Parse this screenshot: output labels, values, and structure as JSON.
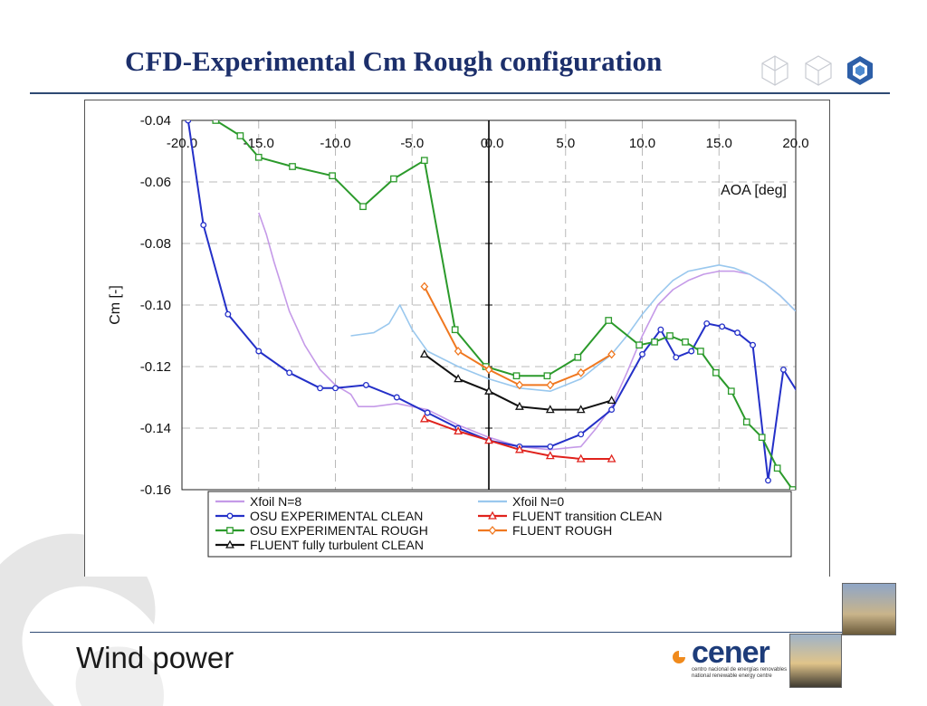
{
  "slide": {
    "title": "CFD-Experimental Cm Rough configuration",
    "footer_title": "Wind power",
    "logo_word": "cener",
    "logo_sub_1": "centro nacional de energías renovables",
    "logo_sub_2": "national renewable energy centre",
    "colors": {
      "title": "#1c2f6b",
      "rule": "#2e4a73"
    }
  },
  "chart_data": {
    "type": "line",
    "xlabel": "AOA [deg]",
    "ylabel": "Cm [-]",
    "xlim": [
      -20,
      20
    ],
    "ylim": [
      -0.16,
      -0.04
    ],
    "xticks": [
      "-20.0",
      "-15.0",
      "-10.0",
      "-5.0",
      "0",
      "0.0",
      "5.0",
      "10.0",
      "15.0",
      "20.0"
    ],
    "yticks": [
      "-0.04",
      "-0.06",
      "-0.08",
      "-0.10",
      "-0.12",
      "-0.14",
      "-0.16"
    ],
    "grid": true,
    "legend_position": "bottom",
    "series": [
      {
        "name": "Xfoil N=8",
        "color": "#c59ae8",
        "marker": "none",
        "points": [
          [
            -15,
            -0.07
          ],
          [
            -14.5,
            -0.077
          ],
          [
            -14,
            -0.086
          ],
          [
            -13.5,
            -0.094
          ],
          [
            -13,
            -0.102
          ],
          [
            -12,
            -0.113
          ],
          [
            -11,
            -0.121
          ],
          [
            -10,
            -0.126
          ],
          [
            -9,
            -0.129
          ],
          [
            -8.5,
            -0.133
          ],
          [
            -7.5,
            -0.133
          ],
          [
            -6,
            -0.132
          ],
          [
            -4,
            -0.134
          ],
          [
            -2,
            -0.139
          ],
          [
            0,
            -0.143
          ],
          [
            2,
            -0.146
          ],
          [
            4,
            -0.147
          ],
          [
            6,
            -0.146
          ],
          [
            7,
            -0.14
          ],
          [
            8,
            -0.133
          ],
          [
            9,
            -0.122
          ],
          [
            10,
            -0.11
          ],
          [
            11,
            -0.1
          ],
          [
            12,
            -0.095
          ],
          [
            13,
            -0.092
          ],
          [
            14,
            -0.09
          ],
          [
            15,
            -0.089
          ],
          [
            16,
            -0.089
          ],
          [
            17,
            -0.09
          ],
          [
            18,
            -0.093
          ],
          [
            19,
            -0.097
          ],
          [
            20,
            -0.102
          ]
        ]
      },
      {
        "name": "Xfoil N=0",
        "color": "#9ac8ee",
        "marker": "none",
        "points": [
          [
            -9,
            -0.11
          ],
          [
            -7.5,
            -0.109
          ],
          [
            -6.5,
            -0.106
          ],
          [
            -5.8,
            -0.1
          ],
          [
            -5,
            -0.108
          ],
          [
            -4,
            -0.115
          ],
          [
            -2,
            -0.12
          ],
          [
            0,
            -0.124
          ],
          [
            2,
            -0.127
          ],
          [
            4,
            -0.128
          ],
          [
            6,
            -0.124
          ],
          [
            8,
            -0.116
          ],
          [
            9,
            -0.11
          ],
          [
            10,
            -0.103
          ],
          [
            11,
            -0.097
          ],
          [
            12,
            -0.092
          ],
          [
            13,
            -0.089
          ],
          [
            14,
            -0.088
          ],
          [
            15,
            -0.087
          ],
          [
            16,
            -0.088
          ],
          [
            17,
            -0.09
          ],
          [
            18,
            -0.093
          ],
          [
            19,
            -0.097
          ],
          [
            20,
            -0.102
          ]
        ]
      },
      {
        "name": "OSU EXPERIMENTAL CLEAN",
        "color": "#2430c8",
        "marker": "circle",
        "points": [
          [
            -19.6,
            -0.04
          ],
          [
            -18.6,
            -0.074
          ],
          [
            -17,
            -0.103
          ],
          [
            -15,
            -0.115
          ],
          [
            -13,
            -0.122
          ],
          [
            -11,
            -0.127
          ],
          [
            -10,
            -0.127
          ],
          [
            -8,
            -0.126
          ],
          [
            -6,
            -0.13
          ],
          [
            -4,
            -0.135
          ],
          [
            -2,
            -0.14
          ],
          [
            0,
            -0.144
          ],
          [
            2,
            -0.146
          ],
          [
            4,
            -0.146
          ],
          [
            6,
            -0.142
          ],
          [
            8,
            -0.134
          ],
          [
            10,
            -0.116
          ],
          [
            11.2,
            -0.108
          ],
          [
            12.2,
            -0.117
          ],
          [
            13.2,
            -0.115
          ],
          [
            14.2,
            -0.106
          ],
          [
            15.2,
            -0.107
          ],
          [
            16.2,
            -0.109
          ],
          [
            17.2,
            -0.113
          ],
          [
            18.2,
            -0.157
          ],
          [
            19.2,
            -0.121
          ],
          [
            20.2,
            -0.129
          ]
        ]
      },
      {
        "name": "FLUENT transition CLEAN",
        "color": "#e0221c",
        "marker": "triangle",
        "points": [
          [
            -4.2,
            -0.137
          ],
          [
            -2,
            -0.141
          ],
          [
            0,
            -0.144
          ],
          [
            2,
            -0.147
          ],
          [
            4,
            -0.149
          ],
          [
            6,
            -0.15
          ],
          [
            8,
            -0.15
          ]
        ]
      },
      {
        "name": "OSU EXPERIMENTAL ROUGH",
        "color": "#2b9a2b",
        "marker": "square",
        "points": [
          [
            -17.8,
            -0.04
          ],
          [
            -16.2,
            -0.045
          ],
          [
            -15,
            -0.052
          ],
          [
            -12.8,
            -0.055
          ],
          [
            -10.2,
            -0.058
          ],
          [
            -8.2,
            -0.068
          ],
          [
            -6.2,
            -0.059
          ],
          [
            -4.2,
            -0.053
          ],
          [
            -2.2,
            -0.108
          ],
          [
            -0.2,
            -0.12
          ],
          [
            1.8,
            -0.123
          ],
          [
            3.8,
            -0.123
          ],
          [
            5.8,
            -0.117
          ],
          [
            7.8,
            -0.105
          ],
          [
            9.8,
            -0.113
          ],
          [
            10.8,
            -0.112
          ],
          [
            11.8,
            -0.11
          ],
          [
            12.8,
            -0.112
          ],
          [
            13.8,
            -0.115
          ],
          [
            14.8,
            -0.122
          ],
          [
            15.8,
            -0.128
          ],
          [
            16.8,
            -0.138
          ],
          [
            17.8,
            -0.143
          ],
          [
            18.8,
            -0.153
          ],
          [
            19.8,
            -0.16
          ]
        ]
      },
      {
        "name": "FLUENT ROUGH",
        "color": "#f07820",
        "marker": "diamond",
        "points": [
          [
            -4.2,
            -0.094
          ],
          [
            -2,
            -0.115
          ],
          [
            0,
            -0.121
          ],
          [
            2,
            -0.126
          ],
          [
            4,
            -0.126
          ],
          [
            6,
            -0.122
          ],
          [
            8,
            -0.116
          ]
        ]
      },
      {
        "name": "FLUENT fully turbulent CLEAN",
        "color": "#111111",
        "marker": "triangle",
        "points": [
          [
            -4.2,
            -0.116
          ],
          [
            -2,
            -0.124
          ],
          [
            0,
            -0.128
          ],
          [
            2,
            -0.133
          ],
          [
            4,
            -0.134
          ],
          [
            6,
            -0.134
          ],
          [
            8,
            -0.131
          ]
        ]
      }
    ]
  }
}
